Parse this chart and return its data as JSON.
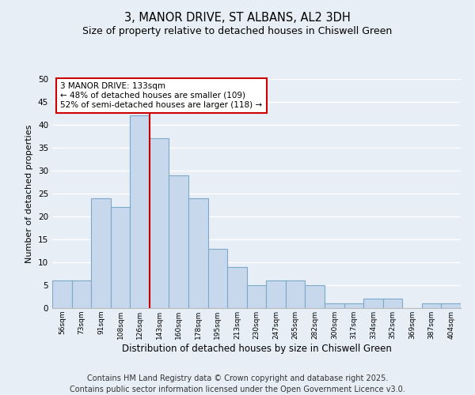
{
  "title_line1": "3, MANOR DRIVE, ST ALBANS, AL2 3DH",
  "title_line2": "Size of property relative to detached houses in Chiswell Green",
  "xlabel": "Distribution of detached houses by size in Chiswell Green",
  "ylabel": "Number of detached properties",
  "bin_labels": [
    "56sqm",
    "73sqm",
    "91sqm",
    "108sqm",
    "126sqm",
    "143sqm",
    "160sqm",
    "178sqm",
    "195sqm",
    "213sqm",
    "230sqm",
    "247sqm",
    "265sqm",
    "282sqm",
    "300sqm",
    "317sqm",
    "334sqm",
    "352sqm",
    "369sqm",
    "387sqm",
    "404sqm"
  ],
  "bar_values": [
    6,
    6,
    24,
    22,
    42,
    37,
    29,
    24,
    13,
    9,
    5,
    6,
    6,
    5,
    1,
    1,
    2,
    2,
    0,
    1,
    1
  ],
  "bar_color": "#c8d8ec",
  "bar_edge_color": "#7aaac8",
  "background_color": "#e8eef6",
  "grid_color": "#ffffff",
  "vline_x_index": 4.5,
  "vline_color": "#cc0000",
  "annotation_text": "3 MANOR DRIVE: 133sqm\n← 48% of detached houses are smaller (109)\n52% of semi-detached houses are larger (118) →",
  "annotation_box_color": "#ffffff",
  "annotation_box_edge_color": "#cc0000",
  "annotation_fontsize": 7.5,
  "ylim": [
    0,
    50
  ],
  "yticks": [
    0,
    5,
    10,
    15,
    20,
    25,
    30,
    35,
    40,
    45,
    50
  ],
  "footer_line1": "Contains HM Land Registry data © Crown copyright and database right 2025.",
  "footer_line2": "Contains public sector information licensed under the Open Government Licence v3.0.",
  "title_fontsize": 10.5,
  "subtitle_fontsize": 9,
  "ylabel_fontsize": 8,
  "xlabel_fontsize": 8.5,
  "footer_fontsize": 7
}
